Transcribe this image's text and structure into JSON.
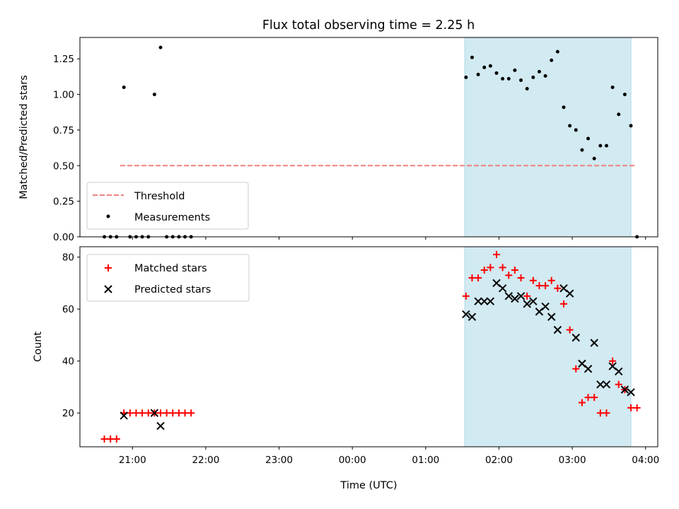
{
  "title": "Flux total observing time = 2.25 h",
  "chart_data": [
    {
      "type": "scatter",
      "ylabel": "Matched/Predicted stars",
      "ylim": [
        0,
        1.4
      ],
      "yticks": [
        "0.00",
        "0.25",
        "0.50",
        "0.75",
        "1.00",
        "1.25"
      ],
      "threshold": {
        "name": "Threshold",
        "value": 0.5,
        "x_start": "20:50",
        "x_end": "03:52",
        "color": "#f08080"
      },
      "highlight_span": {
        "x_start": "01:32",
        "x_end": "03:48",
        "color": "#add8e6"
      },
      "series": [
        {
          "name": "Measurements",
          "marker": "dot",
          "color": "#000000",
          "x": [
            "20:37",
            "20:42",
            "20:47",
            "20:53",
            "20:58",
            "21:03",
            "21:08",
            "21:13",
            "21:18",
            "21:23",
            "21:28",
            "21:33",
            "21:38",
            "21:43",
            "21:48",
            "01:33",
            "01:38",
            "01:43",
            "01:48",
            "01:53",
            "01:58",
            "02:03",
            "02:08",
            "02:13",
            "02:18",
            "02:23",
            "02:28",
            "02:33",
            "02:38",
            "02:43",
            "02:48",
            "02:53",
            "02:58",
            "03:03",
            "03:08",
            "03:13",
            "03:18",
            "03:23",
            "03:28",
            "03:33",
            "03:38",
            "03:43",
            "03:48",
            "03:53"
          ],
          "y": [
            0,
            0,
            0,
            1.05,
            0,
            0,
            0,
            0,
            1.0,
            1.33,
            0,
            0,
            0,
            0,
            0,
            1.12,
            1.26,
            1.14,
            1.19,
            1.2,
            1.15,
            1.11,
            1.11,
            1.17,
            1.1,
            1.04,
            1.12,
            1.16,
            1.13,
            1.24,
            1.3,
            0.91,
            0.78,
            0.75,
            0.61,
            0.69,
            0.55,
            0.64,
            0.64,
            1.05,
            0.86,
            1.0,
            0.78,
            0
          ]
        }
      ]
    },
    {
      "type": "scatter",
      "xlabel": "Time (UTC)",
      "ylabel": "Count",
      "ylim": [
        7,
        84
      ],
      "yticks": [
        "20",
        "40",
        "60",
        "80"
      ],
      "xticks": [
        "21:00",
        "22:00",
        "23:00",
        "00:00",
        "01:00",
        "02:00",
        "03:00",
        "04:00"
      ],
      "xlim": [
        "20:17",
        "04:10"
      ],
      "highlight_span": {
        "x_start": "01:32",
        "x_end": "03:48",
        "color": "#add8e6"
      },
      "series": [
        {
          "name": "Matched stars",
          "marker": "plus",
          "color": "#ff0000",
          "x": [
            "20:37",
            "20:42",
            "20:47",
            "20:53",
            "20:58",
            "21:03",
            "21:08",
            "21:13",
            "21:18",
            "21:23",
            "21:28",
            "21:33",
            "21:38",
            "21:43",
            "21:48",
            "01:33",
            "01:38",
            "01:43",
            "01:48",
            "01:53",
            "01:58",
            "02:03",
            "02:08",
            "02:13",
            "02:18",
            "02:23",
            "02:28",
            "02:33",
            "02:38",
            "02:43",
            "02:48",
            "02:53",
            "02:58",
            "03:03",
            "03:08",
            "03:13",
            "03:18",
            "03:23",
            "03:28",
            "03:33",
            "03:38",
            "03:43",
            "03:48",
            "03:53"
          ],
          "y": [
            10,
            10,
            10,
            20,
            20,
            20,
            20,
            20,
            20,
            20,
            20,
            20,
            20,
            20,
            20,
            65,
            72,
            72,
            75,
            76,
            81,
            76,
            73,
            75,
            72,
            65,
            71,
            69,
            69,
            71,
            68,
            62,
            52,
            37,
            24,
            26,
            26,
            20,
            20,
            40,
            31,
            29,
            22,
            22
          ]
        },
        {
          "name": "Predicted stars",
          "marker": "x",
          "color": "#000000",
          "x": [
            "20:53",
            "21:18",
            "21:23",
            "01:33",
            "01:38",
            "01:43",
            "01:48",
            "01:53",
            "01:58",
            "02:03",
            "02:08",
            "02:13",
            "02:18",
            "02:23",
            "02:28",
            "02:33",
            "02:38",
            "02:43",
            "02:48",
            "02:53",
            "02:58",
            "03:03",
            "03:08",
            "03:13",
            "03:18",
            "03:23",
            "03:28",
            "03:33",
            "03:38",
            "03:43",
            "03:48"
          ],
          "y": [
            19,
            20,
            15,
            58,
            57,
            63,
            63,
            63,
            70,
            68,
            65,
            64,
            65,
            62,
            63,
            59,
            61,
            57,
            52,
            68,
            66,
            49,
            39,
            37,
            47,
            31,
            31,
            38,
            36,
            29,
            28
          ]
        }
      ]
    }
  ]
}
